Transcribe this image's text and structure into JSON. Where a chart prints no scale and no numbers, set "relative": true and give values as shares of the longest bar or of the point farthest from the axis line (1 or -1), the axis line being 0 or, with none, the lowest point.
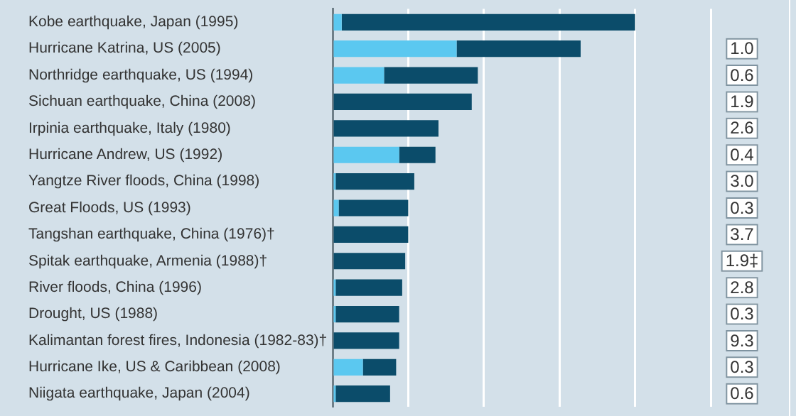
{
  "chart_data": {
    "type": "bar",
    "orientation": "horizontal",
    "stacked": true,
    "relative": true,
    "grid": "x",
    "legend": false,
    "categories": [
      "Kobe earthquake, Japan (1995)",
      "Hurricane Katrina, US (2005)",
      "Northridge earthquake, US (1994)",
      "Sichuan earthquake, China (2008)",
      "Irpinia earthquake, Italy (1980)",
      "Hurricane Andrew, US (1992)",
      "Yangtze River floods, China (1998)",
      "Great Floods, US (1993)",
      "Tangshan earthquake, China (1976)†",
      "Spitak earthquake, Armenia (1988)†",
      "River floods, China (1996)",
      "Drought, US (1988)",
      "Kalimantan forest fires, Indonesia (1982-83)†",
      "Hurricane Ike, US & Caribbean (2008)",
      "Niigata earthquake, Japan (2004)"
    ],
    "series": [
      {
        "color": "#5bc8f0",
        "values": [
          0.03,
          0.41,
          0.17,
          0,
          0,
          0.22,
          0.01,
          0.02,
          0,
          0,
          0.01,
          0.01,
          0,
          0.1,
          0.01
        ]
      },
      {
        "color": "#0b4c6a",
        "values": [
          0.97,
          0.41,
          0.31,
          0.46,
          0.35,
          0.12,
          0.26,
          0.23,
          0.25,
          0.24,
          0.22,
          0.21,
          0.22,
          0.11,
          0.18
        ]
      }
    ],
    "annotations": [
      "1.0",
      "0.6",
      "1.9",
      "2.6",
      "0.4",
      "3.0",
      "0.3",
      "3.7",
      "1.9‡",
      "2.8",
      "0.3",
      "9.3",
      "0.3",
      "0.6"
    ]
  }
}
